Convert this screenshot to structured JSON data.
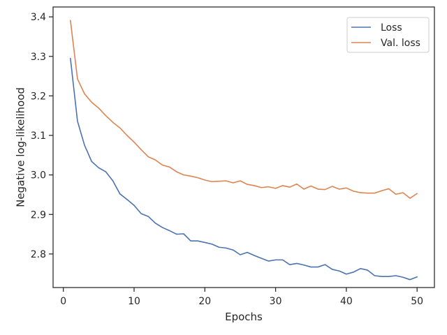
{
  "chart_data": {
    "type": "line",
    "title": "",
    "xlabel": "Epochs",
    "ylabel": "Negative log-likelihood",
    "xlim": [
      -1.45,
      52.45
    ],
    "ylim": [
      2.715,
      3.425
    ],
    "xticks": [
      0,
      10,
      20,
      30,
      40,
      50
    ],
    "yticks": [
      2.8,
      2.9,
      3.0,
      3.1,
      3.2,
      3.3,
      3.4
    ],
    "ytick_labels": [
      "2.8",
      "2.9",
      "3.0",
      "3.1",
      "3.2",
      "3.3",
      "3.4"
    ],
    "grid": false,
    "legend": "top-right",
    "x": [
      1,
      2,
      3,
      4,
      5,
      6,
      7,
      8,
      9,
      10,
      11,
      12,
      13,
      14,
      15,
      16,
      17,
      18,
      19,
      20,
      21,
      22,
      23,
      24,
      25,
      26,
      27,
      28,
      29,
      30,
      31,
      32,
      33,
      34,
      35,
      36,
      37,
      38,
      39,
      40,
      41,
      42,
      43,
      44,
      45,
      46,
      47,
      48,
      49,
      50
    ],
    "series": [
      {
        "name": "Loss",
        "color": "#4c72b0",
        "values": [
          3.295,
          3.136,
          3.075,
          3.034,
          3.018,
          3.008,
          2.985,
          2.952,
          2.938,
          2.923,
          2.902,
          2.895,
          2.878,
          2.867,
          2.859,
          2.85,
          2.851,
          2.833,
          2.833,
          2.829,
          2.825,
          2.817,
          2.815,
          2.81,
          2.798,
          2.804,
          2.796,
          2.789,
          2.782,
          2.785,
          2.785,
          2.773,
          2.776,
          2.772,
          2.767,
          2.767,
          2.773,
          2.761,
          2.757,
          2.749,
          2.754,
          2.763,
          2.759,
          2.745,
          2.743,
          2.743,
          2.745,
          2.741,
          2.735,
          2.742
        ]
      },
      {
        "name": "Val. loss",
        "color": "#dd8452",
        "values": [
          3.391,
          3.243,
          3.205,
          3.184,
          3.169,
          3.15,
          3.133,
          3.119,
          3.1,
          3.083,
          3.064,
          3.046,
          3.038,
          3.025,
          3.02,
          3.008,
          3.0,
          2.997,
          2.993,
          2.987,
          2.983,
          2.984,
          2.985,
          2.98,
          2.985,
          2.976,
          2.973,
          2.968,
          2.97,
          2.966,
          2.973,
          2.969,
          2.977,
          2.964,
          2.972,
          2.964,
          2.963,
          2.971,
          2.964,
          2.967,
          2.959,
          2.955,
          2.954,
          2.954,
          2.96,
          2.965,
          2.951,
          2.955,
          2.941,
          2.953
        ]
      }
    ]
  }
}
